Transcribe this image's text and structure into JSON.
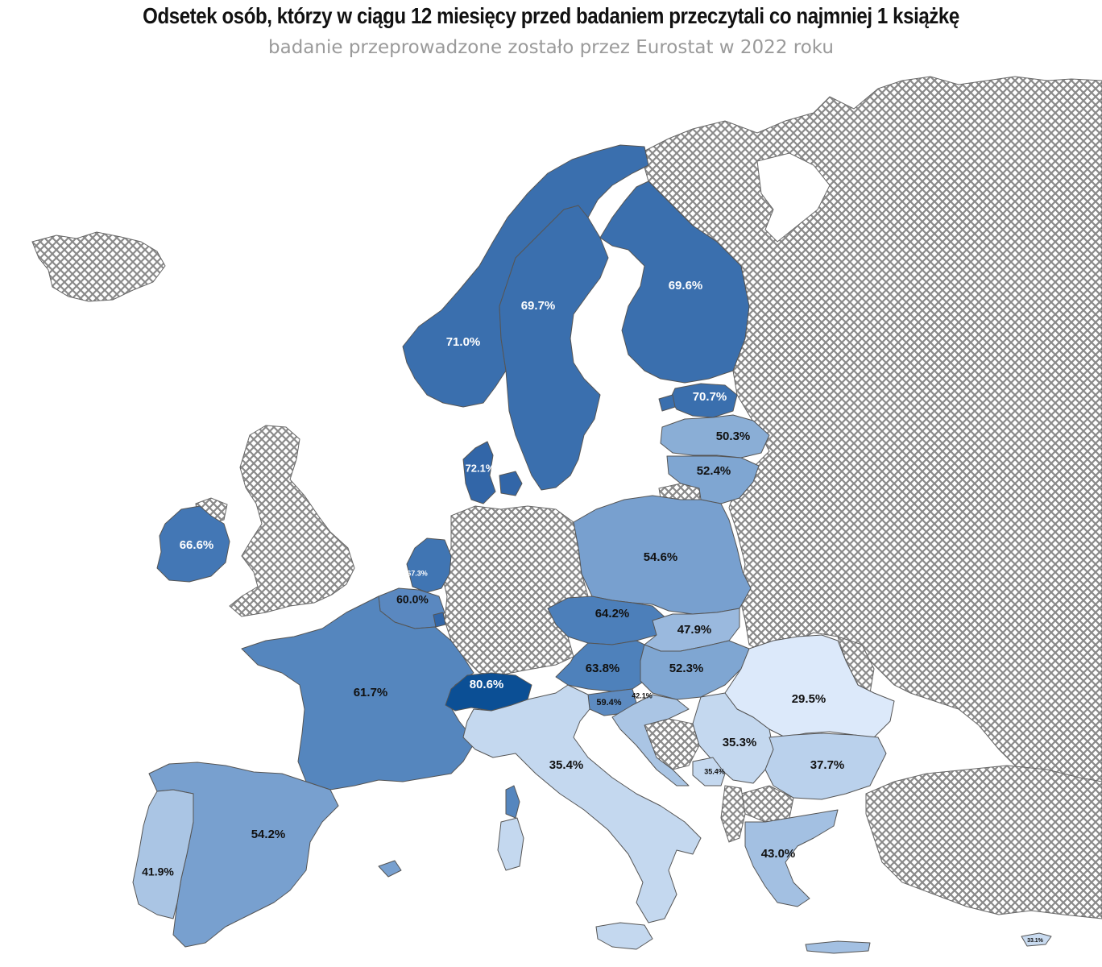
{
  "header": {
    "title": "Odsetek osób, którzy w ciągu 12 miesięcy przed badaniem przeczytali co najmniej 1 książkę",
    "subtitle": "badanie przeprowadzone zostało przez Eurostat w 2022 roku"
  },
  "colors": {
    "no_data_hatch": "#8a8a8a",
    "border": "#555555",
    "scale_high": "#0b4f95",
    "scale_low": "#dce9fa"
  },
  "map_data": {
    "type": "choropleth",
    "unit": "%",
    "regions": [
      {
        "id": "norway",
        "label": "71.0%",
        "value": 71.0,
        "fill": "#3a6fae",
        "text_color": "#ffffff"
      },
      {
        "id": "sweden",
        "label": "69.7%",
        "value": 69.7,
        "fill": "#3a6fae",
        "text_color": "#ffffff"
      },
      {
        "id": "finland",
        "label": "69.6%",
        "value": 69.6,
        "fill": "#3a6fae",
        "text_color": "#ffffff"
      },
      {
        "id": "estonia",
        "label": "70.7%",
        "value": 70.7,
        "fill": "#3a6fae",
        "text_color": "#ffffff"
      },
      {
        "id": "latvia",
        "label": "50.3%",
        "value": 50.3,
        "fill": "#8aaed6",
        "text_color": "#111111"
      },
      {
        "id": "lithuania",
        "label": "52.4%",
        "value": 52.4,
        "fill": "#7fa6d2",
        "text_color": "#111111"
      },
      {
        "id": "denmark",
        "label": "72.1%",
        "value": 72.1,
        "fill": "#3266a8",
        "text_color": "#ffffff"
      },
      {
        "id": "ireland",
        "label": "66.6%",
        "value": 66.6,
        "fill": "#4377b5",
        "text_color": "#ffffff"
      },
      {
        "id": "netherlands",
        "label": "67.3%",
        "value": 67.3,
        "fill": "#4075b3",
        "text_color": "#ffffff"
      },
      {
        "id": "belgium",
        "label": "60.0%",
        "value": 60.0,
        "fill": "#5a88c0",
        "text_color": "#111111"
      },
      {
        "id": "luxembourg",
        "label": "",
        "value": null,
        "fill": "#3266a8",
        "text_color": "#ffffff"
      },
      {
        "id": "france",
        "label": "61.7%",
        "value": 61.7,
        "fill": "#5586be",
        "text_color": "#111111"
      },
      {
        "id": "switzerland",
        "label": "80.6%",
        "value": 80.6,
        "fill": "#0b4f95",
        "text_color": "#ffffff"
      },
      {
        "id": "poland",
        "label": "54.6%",
        "value": 54.6,
        "fill": "#78a0cf",
        "text_color": "#111111"
      },
      {
        "id": "czechia",
        "label": "64.2%",
        "value": 64.2,
        "fill": "#4c7fba",
        "text_color": "#111111"
      },
      {
        "id": "slovakia",
        "label": "47.9%",
        "value": 47.9,
        "fill": "#9ab9de",
        "text_color": "#111111"
      },
      {
        "id": "austria",
        "label": "63.8%",
        "value": 63.8,
        "fill": "#4e81bb",
        "text_color": "#111111"
      },
      {
        "id": "hungary",
        "label": "52.3%",
        "value": 52.3,
        "fill": "#7fa6d2",
        "text_color": "#111111"
      },
      {
        "id": "slovenia",
        "label": "59.4%",
        "value": 59.4,
        "fill": "#5d8bc1",
        "text_color": "#111111"
      },
      {
        "id": "croatia",
        "label": "42.1%",
        "value": 42.1,
        "fill": "#aac5e4",
        "text_color": "#111111"
      },
      {
        "id": "romania",
        "label": "29.5%",
        "value": 29.5,
        "fill": "#dce9fa",
        "text_color": "#111111"
      },
      {
        "id": "serbia",
        "label": "35.3%",
        "value": 35.3,
        "fill": "#c4d8ef",
        "text_color": "#111111"
      },
      {
        "id": "montenegro",
        "label": "35.4%",
        "value": 35.4,
        "fill": "#c4d8ef",
        "text_color": "#111111"
      },
      {
        "id": "bulgaria",
        "label": "37.7%",
        "value": 37.7,
        "fill": "#bad1ec",
        "text_color": "#111111"
      },
      {
        "id": "italy",
        "label": "35.4%",
        "value": 35.4,
        "fill": "#c4d8ef",
        "text_color": "#111111"
      },
      {
        "id": "spain",
        "label": "54.2%",
        "value": 54.2,
        "fill": "#78a0cf",
        "text_color": "#111111"
      },
      {
        "id": "portugal",
        "label": "41.9%",
        "value": 41.9,
        "fill": "#aac5e4",
        "text_color": "#111111"
      },
      {
        "id": "greece",
        "label": "43.0%",
        "value": 43.0,
        "fill": "#a3c0e2",
        "text_color": "#111111"
      },
      {
        "id": "cyprus",
        "label": "33.1%",
        "value": 33.1,
        "fill": "#c9dbf0",
        "text_color": "#111111"
      }
    ],
    "no_data_regions": [
      "iceland",
      "united-kingdom",
      "germany",
      "russia",
      "belarus",
      "ukraine",
      "turkey",
      "bosnia",
      "north-macedonia",
      "albania",
      "moldova",
      "kaliningrad"
    ]
  }
}
